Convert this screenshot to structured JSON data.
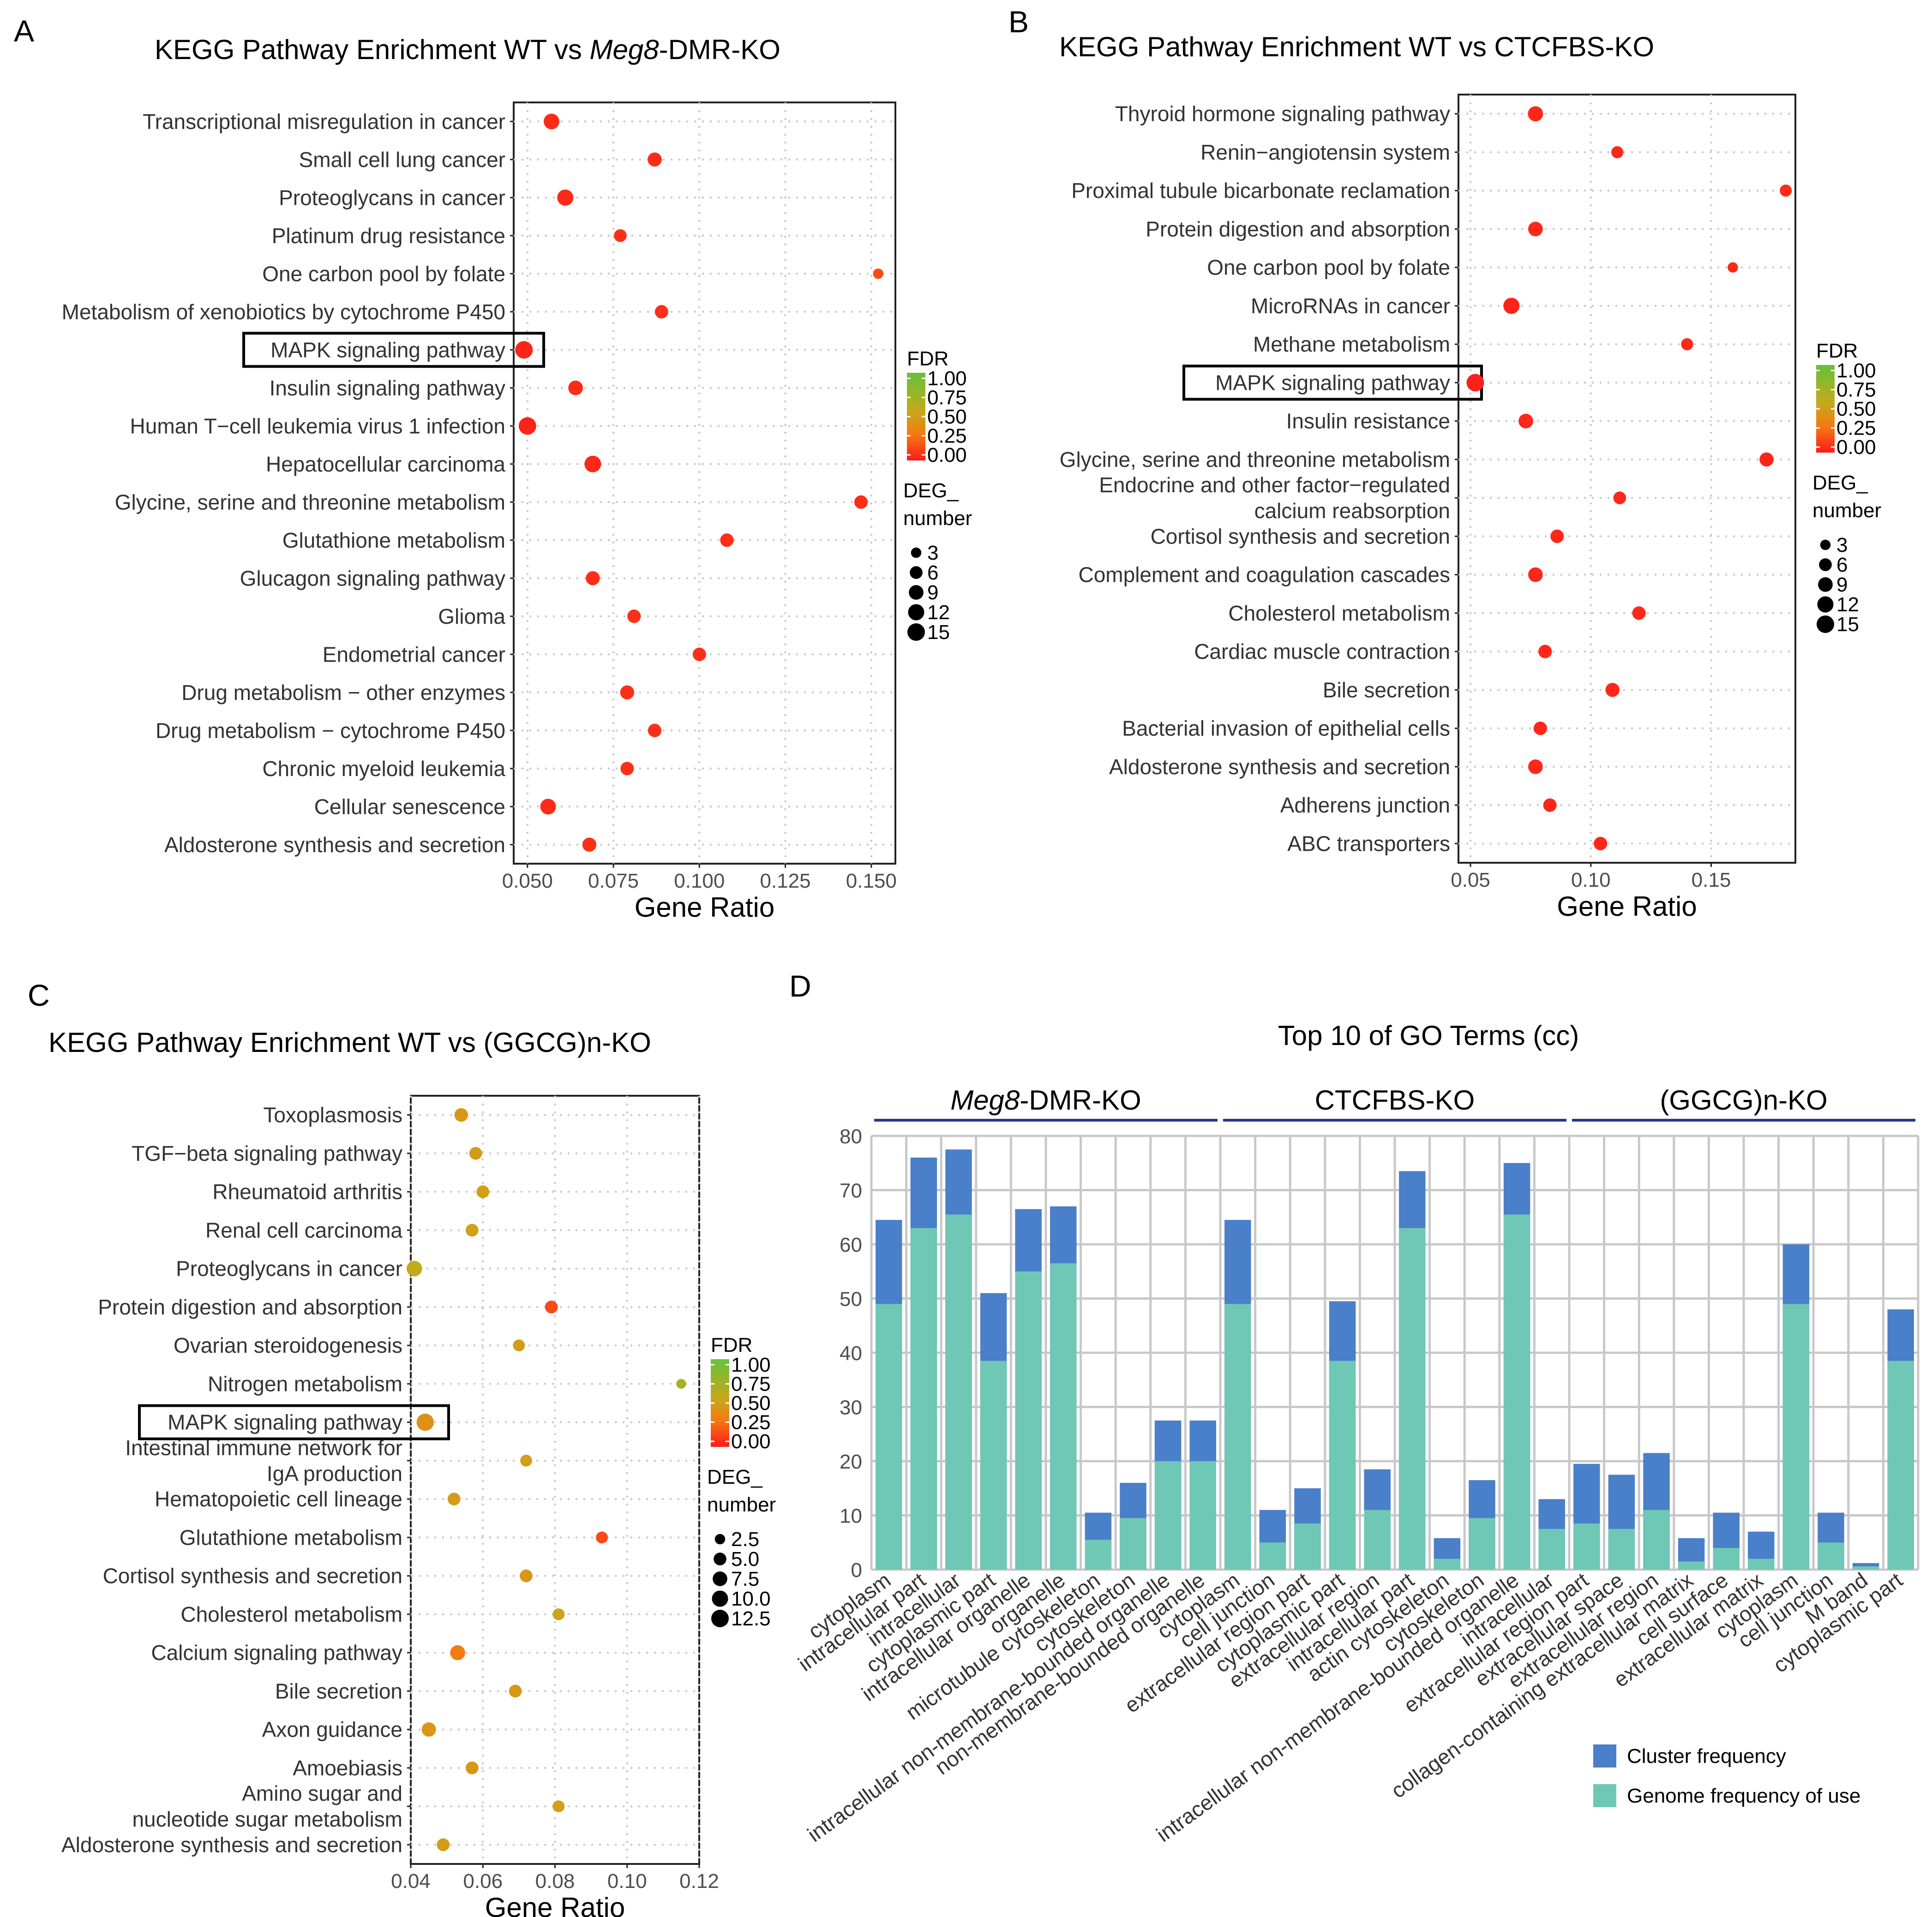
{
  "figure": {
    "panel_letters": [
      "A",
      "B",
      "C",
      "D"
    ]
  },
  "chart_data": [
    {
      "panel": "A",
      "type": "scatter",
      "title": "KEGG Pathway Enrichment  WT vs Meg8-DMR-KO",
      "title_parts": [
        "KEGG Pathway Enrichment  WT vs ",
        "Meg8",
        "-DMR-KO"
      ],
      "xlabel": "Gene Ratio",
      "xlim": [
        0.046,
        0.157
      ],
      "xticks": [
        "0.050",
        "0.075",
        "0.100",
        "0.125",
        "0.150"
      ],
      "xtick_values": [
        0.05,
        0.075,
        0.1,
        0.125,
        0.15
      ],
      "categories": [
        "Transcriptional misregulation in cancer",
        "Small cell lung cancer",
        "Proteoglycans in cancer",
        "Platinum drug resistance",
        "One carbon pool by folate",
        "Metabolism of xenobiotics by cytochrome P450",
        "MAPK signaling pathway",
        "Insulin signaling pathway",
        "Human T−cell leukemia virus 1 infection",
        "Hepatocellular carcinoma",
        "Glycine, serine and threonine metabolism",
        "Glutathione metabolism",
        "Glucagon signaling pathway",
        "Glioma",
        "Endometrial cancer",
        "Drug metabolism − other enzymes",
        "Drug metabolism − cytochrome P450",
        "Chronic myeloid leukemia",
        "Cellular senescence",
        "Aldosterone synthesis and secretion"
      ],
      "gene_ratio": [
        0.057,
        0.087,
        0.061,
        0.077,
        0.152,
        0.089,
        0.049,
        0.064,
        0.05,
        0.069,
        0.147,
        0.108,
        0.069,
        0.081,
        0.1,
        0.079,
        0.087,
        0.079,
        0.056,
        0.068
      ],
      "deg_number": [
        11,
        8,
        12,
        6,
        3,
        7,
        15,
        9,
        15,
        13,
        7,
        7,
        8,
        7,
        7,
        8,
        7,
        7,
        11,
        8
      ],
      "fdr": [
        0.05,
        0.06,
        0.05,
        0.07,
        0.15,
        0.07,
        0.03,
        0.06,
        0.03,
        0.05,
        0.06,
        0.06,
        0.07,
        0.07,
        0.07,
        0.07,
        0.07,
        0.07,
        0.05,
        0.07
      ],
      "highlight": "MAPK signaling pathway",
      "legend": {
        "fdr_title": "FDR",
        "fdr_ticks": [
          "1.00",
          "0.75",
          "0.50",
          "0.25",
          "0.00"
        ],
        "deg_title": [
          "DEG_",
          "number"
        ],
        "deg_values": [
          3,
          6,
          9,
          12,
          15
        ],
        "deg_labels": [
          "3",
          "6",
          "9",
          "12",
          "15"
        ]
      }
    },
    {
      "panel": "B",
      "type": "scatter",
      "title": "KEGG Pathway Enrichment  WT vs CTCFBS-KO",
      "title_parts": [
        "KEGG Pathway Enrichment  WT vs CTCFBS-KO",
        "",
        ""
      ],
      "xlabel": "Gene Ratio",
      "xlim": [
        0.045,
        0.185
      ],
      "xticks": [
        "0.05",
        "0.10",
        "0.15"
      ],
      "xtick_values": [
        0.05,
        0.1,
        0.15
      ],
      "categories": [
        "Thyroid hormone signaling pathway",
        "Renin−angiotensin system",
        "Proximal tubule bicarbonate reclamation",
        "Protein digestion and absorption",
        "One carbon pool by folate",
        "MicroRNAs in cancer",
        "Methane metabolism",
        "MAPK signaling pathway",
        "Insulin resistance",
        "Glycine, serine and threonine metabolism",
        "Endocrine and other factor−regulated\ncalcium reabsorption",
        "Cortisol synthesis and secretion",
        "Complement and coagulation cascades",
        "Cholesterol metabolism",
        "Cardiac muscle contraction",
        "Bile secretion",
        "Bacterial invasion of epithelial cells",
        "Aldosterone synthesis and secretion",
        "Adherens junction",
        "ABC transporters"
      ],
      "gene_ratio": [
        0.077,
        0.111,
        0.181,
        0.077,
        0.159,
        0.067,
        0.14,
        0.052,
        0.073,
        0.173,
        0.112,
        0.086,
        0.077,
        0.12,
        0.081,
        0.109,
        0.079,
        0.077,
        0.083,
        0.104
      ],
      "deg_number": [
        10,
        5,
        5,
        9,
        3,
        12,
        5,
        15,
        9,
        8,
        6,
        7,
        9,
        7,
        7,
        8,
        7,
        9,
        7,
        7
      ],
      "fdr": [
        0.04,
        0.05,
        0.06,
        0.04,
        0.05,
        0.03,
        0.05,
        0.02,
        0.04,
        0.03,
        0.04,
        0.04,
        0.04,
        0.04,
        0.04,
        0.04,
        0.04,
        0.04,
        0.04,
        0.04
      ],
      "highlight": "MAPK signaling pathway",
      "legend": {
        "fdr_title": "FDR",
        "fdr_ticks": [
          "1.00",
          "0.75",
          "0.50",
          "0.25",
          "0.00"
        ],
        "deg_title": [
          "DEG_",
          "number"
        ],
        "deg_values": [
          3,
          6,
          9,
          12,
          15
        ],
        "deg_labels": [
          "3",
          "6",
          "9",
          "12",
          "15"
        ]
      }
    },
    {
      "panel": "C",
      "type": "scatter",
      "title": "KEGG Pathway Enrichment  WT vs (GGCG)n-KO",
      "title_parts": [
        "KEGG Pathway Enrichment  WT vs (GGCG)n-KO",
        "",
        ""
      ],
      "xlabel": "Gene Ratio",
      "xlim": [
        0.04,
        0.12
      ],
      "xticks": [
        "0.04",
        "0.06",
        "0.08",
        "0.10",
        "0.12"
      ],
      "xtick_values": [
        0.04,
        0.06,
        0.08,
        0.1,
        0.12
      ],
      "categories": [
        "Toxoplasmosis",
        "TGF−beta signaling pathway",
        "Rheumatoid arthritis",
        "Renal cell carcinoma",
        "Proteoglycans in cancer",
        "Protein digestion and absorption",
        "Ovarian steroidogenesis",
        "Nitrogen metabolism",
        "MAPK signaling pathway",
        "Intestinal immune network for\nIgA production",
        "Hematopoietic cell lineage",
        "Glutathione metabolism",
        "Cortisol synthesis and secretion",
        "Cholesterol metabolism",
        "Calcium signaling pathway",
        "Bile secretion",
        "Axon guidance",
        "Amoebiasis",
        "Amino sugar and\nnucleotide sugar metabolism",
        "Aldosterone synthesis and secretion"
      ],
      "gene_ratio": [
        0.054,
        0.058,
        0.06,
        0.057,
        0.041,
        0.079,
        0.07,
        0.115,
        0.044,
        0.072,
        0.052,
        0.093,
        0.072,
        0.081,
        0.053,
        0.069,
        0.045,
        0.057,
        0.081,
        0.049
      ],
      "deg_number": [
        6,
        5,
        5,
        5,
        9,
        5,
        4,
        2,
        12,
        4,
        5,
        4,
        5,
        4,
        8,
        5,
        7,
        5,
        4,
        5
      ],
      "fdr": [
        0.45,
        0.48,
        0.5,
        0.5,
        0.58,
        0.15,
        0.48,
        0.7,
        0.42,
        0.5,
        0.48,
        0.15,
        0.45,
        0.55,
        0.3,
        0.45,
        0.45,
        0.45,
        0.5,
        0.48
      ],
      "highlight": "MAPK signaling pathway",
      "legend": {
        "fdr_title": "FDR",
        "fdr_ticks": [
          "1.00",
          "0.75",
          "0.50",
          "0.25",
          "0.00"
        ],
        "deg_title": [
          "DEG_",
          "number"
        ],
        "deg_values": [
          2.5,
          5.0,
          7.5,
          10.0,
          12.5
        ],
        "deg_labels": [
          "2.5",
          "5.0",
          "7.5",
          "10.0",
          "12.5"
        ]
      }
    },
    {
      "panel": "D",
      "type": "bar",
      "title": "Top 10 of GO Terms (cc)",
      "ylim": [
        0,
        80
      ],
      "yticks": [
        "0",
        "10",
        "20",
        "30",
        "40",
        "50",
        "60",
        "70",
        "80"
      ],
      "ytick_values": [
        0,
        10,
        20,
        30,
        40,
        50,
        60,
        70,
        80
      ],
      "groups": [
        {
          "name": "Meg8-DMR-KO",
          "name_parts": [
            "Meg8",
            "-DMR-KO"
          ],
          "span": [
            0,
            10
          ]
        },
        {
          "name": "CTCFBS-KO",
          "name_parts": [
            "CTCFBS-KO",
            ""
          ],
          "span": [
            10,
            20
          ]
        },
        {
          "name": "(GGCG)n-KO",
          "name_parts": [
            "(GGCG)n-KO",
            ""
          ],
          "span": [
            20,
            30
          ]
        }
      ],
      "categories": [
        "cytoplasm",
        "intracellular part",
        "intracellular",
        "cytoplasmic part",
        "intracellular organelle",
        "organelle",
        "microtubule cytoskeleton",
        "cytoskeleton",
        "intracellular non-membrane-bounded organelle",
        "non-membrane-bounded organelle",
        "cytoplasm",
        "cell junction",
        "extracellular region part",
        "cytoplasmic part",
        "extracellular region",
        "intracellular part",
        "actin cytoskeleton",
        "cytoskeleton",
        "intracellular non-membrane-bounded organelle",
        "intracellular",
        "extracellular region part",
        "extracellular space",
        "extracellular region",
        "collagen-containing extracellular matrix",
        "cell surface",
        "extracellular matrix",
        "cytoplasm",
        "cell junction",
        "M band",
        "cytoplasmic part"
      ],
      "highlighted_categories": [
        6,
        7,
        16,
        17
      ],
      "highlight_color": "#e41a1c",
      "series": [
        {
          "name": "Cluster frequency",
          "color": "#4a7fc9",
          "values": [
            64.5,
            76,
            77.5,
            51,
            66.5,
            67,
            10.5,
            16,
            27.5,
            27.5,
            64.5,
            11,
            15,
            49.5,
            18.5,
            73.5,
            5.8,
            16.5,
            75,
            13,
            19.5,
            17.5,
            21.5,
            5.8,
            10.5,
            7,
            60,
            10.5,
            1.2,
            48
          ]
        },
        {
          "name": "Genome frequency of use",
          "color": "#6fc7b6",
          "values": [
            49,
            63,
            65.5,
            38.5,
            55,
            56.5,
            5.5,
            9.5,
            20,
            20,
            49,
            5,
            8.5,
            38.5,
            11,
            63,
            2,
            9.5,
            65.5,
            7.5,
            8.5,
            7.5,
            11,
            1.5,
            4,
            2,
            49,
            5,
            0.6,
            38.5
          ]
        }
      ]
    }
  ]
}
